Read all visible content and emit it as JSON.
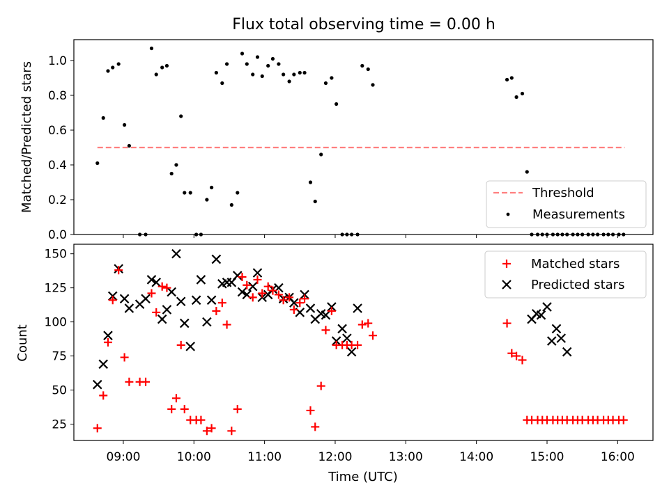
{
  "figure_title": "Flux total observing time = 0.00 h",
  "colors": {
    "threshold": "#ff7f7f",
    "measurement": "#000000",
    "matched": "#ff0000",
    "predicted": "#000000"
  },
  "chart_data": [
    {
      "type": "scatter",
      "title": "",
      "xlabel": "",
      "ylabel": "Matched/Predicted stars",
      "xlim": [
        "08:18",
        "16:30"
      ],
      "ylim": [
        0,
        1.12
      ],
      "yticks": [
        0.0,
        0.2,
        0.4,
        0.6,
        0.8,
        1.0
      ],
      "ytick_labels": [
        "0.0",
        "0.2",
        "0.4",
        "0.6",
        "0.8",
        "1.0"
      ],
      "xticks": [
        "09:00",
        "10:00",
        "11:00",
        "12:00",
        "13:00",
        "14:00",
        "15:00",
        "16:00"
      ],
      "legend": {
        "position": "lower right",
        "entries": [
          "Threshold",
          "Measurements"
        ]
      },
      "grid": false,
      "threshold": {
        "name": "Threshold",
        "y": 0.5,
        "x_start": "08:38",
        "x_end": "16:06",
        "style": "dashed"
      },
      "series": [
        {
          "name": "Measurements",
          "x": [
            "08:38",
            "08:43",
            "08:47",
            "08:51",
            "08:56",
            "09:01",
            "09:05",
            "09:14",
            "09:19",
            "09:24",
            "09:28",
            "09:33",
            "09:37",
            "09:41",
            "09:45",
            "09:49",
            "09:52",
            "09:57",
            "10:02",
            "10:06",
            "10:11",
            "10:15",
            "10:19",
            "10:24",
            "10:28",
            "10:32",
            "10:37",
            "10:41",
            "10:45",
            "10:50",
            "10:54",
            "10:58",
            "11:03",
            "11:07",
            "11:12",
            "11:16",
            "11:21",
            "11:25",
            "11:30",
            "11:34",
            "11:39",
            "11:43",
            "11:48",
            "11:52",
            "11:57",
            "12:01",
            "12:06",
            "12:10",
            "12:14",
            "12:19",
            "12:23",
            "12:28",
            "12:32",
            "14:26",
            "14:30",
            "14:34",
            "14:39",
            "14:43",
            "14:47",
            "14:52",
            "14:56",
            "15:00",
            "15:05",
            "15:09",
            "15:13",
            "15:17",
            "15:22",
            "15:26",
            "15:30",
            "15:35",
            "15:39",
            "15:43",
            "15:48",
            "15:52",
            "15:56",
            "16:01",
            "16:05"
          ],
          "y": [
            0.41,
            0.67,
            0.94,
            0.96,
            0.98,
            0.63,
            0.51,
            0,
            0,
            1.07,
            0.92,
            0.96,
            0.97,
            0.35,
            0.4,
            0.68,
            0.24,
            0.24,
            0,
            0,
            0.2,
            0.27,
            0.93,
            0.87,
            0.98,
            0.17,
            0.24,
            1.04,
            0.98,
            0.92,
            1.02,
            0.91,
            0.97,
            1.01,
            0.98,
            0.92,
            0.88,
            0.92,
            0.93,
            0.93,
            0.3,
            0.19,
            0.46,
            0.87,
            0.9,
            0.75,
            0,
            0,
            0,
            0,
            0.97,
            0.95,
            0.86,
            0.89,
            0.9,
            0.79,
            0.81,
            0.36,
            0,
            0,
            0,
            0,
            0,
            0,
            0,
            0,
            0,
            0,
            0,
            0,
            0,
            0,
            0,
            0,
            0,
            0,
            0
          ]
        }
      ]
    },
    {
      "type": "scatter",
      "title": "",
      "xlabel": "Time (UTC)",
      "ylabel": "Count",
      "xlim": [
        "08:18",
        "16:30"
      ],
      "ylim": [
        13,
        157
      ],
      "yticks": [
        25,
        50,
        75,
        100,
        125,
        150
      ],
      "ytick_labels": [
        "25",
        "50",
        "75",
        "100",
        "125",
        "150"
      ],
      "xticks": [
        "09:00",
        "10:00",
        "11:00",
        "12:00",
        "13:00",
        "14:00",
        "15:00",
        "16:00"
      ],
      "xtick_labels": [
        "09:00",
        "10:00",
        "11:00",
        "12:00",
        "13:00",
        "14:00",
        "15:00",
        "16:00"
      ],
      "legend": {
        "position": "upper right",
        "entries": [
          "Matched stars",
          "Predicted stars"
        ]
      },
      "grid": false,
      "series": [
        {
          "name": "Matched stars",
          "marker": "+",
          "x": [
            "08:38",
            "08:43",
            "08:47",
            "08:51",
            "08:56",
            "09:01",
            "09:05",
            "09:14",
            "09:19",
            "09:24",
            "09:28",
            "09:33",
            "09:37",
            "09:41",
            "09:45",
            "09:49",
            "09:52",
            "09:57",
            "10:02",
            "10:06",
            "10:11",
            "10:15",
            "10:19",
            "10:24",
            "10:28",
            "10:32",
            "10:37",
            "10:41",
            "10:45",
            "10:50",
            "10:54",
            "10:58",
            "11:03",
            "11:07",
            "11:12",
            "11:16",
            "11:21",
            "11:25",
            "11:30",
            "11:34",
            "11:39",
            "11:43",
            "11:48",
            "11:52",
            "11:57",
            "12:01",
            "12:06",
            "12:10",
            "12:14",
            "12:19",
            "12:23",
            "12:28",
            "12:32",
            "14:26",
            "14:30",
            "14:34",
            "14:39",
            "14:43",
            "14:47",
            "14:52",
            "14:56",
            "15:00",
            "15:05",
            "15:09",
            "15:13",
            "15:17",
            "15:22",
            "15:26",
            "15:30",
            "15:35",
            "15:39",
            "15:43",
            "15:48",
            "15:52",
            "15:56",
            "16:01",
            "16:05"
          ],
          "y": [
            22,
            46,
            85,
            116,
            138,
            74,
            56,
            56,
            56,
            121,
            107,
            126,
            125,
            36,
            44,
            83,
            36,
            28,
            28,
            28,
            20,
            22,
            108,
            114,
            98,
            20,
            36,
            133,
            127,
            118,
            131,
            121,
            126,
            123,
            120,
            116,
            118,
            109,
            114,
            117,
            35,
            23,
            53,
            94,
            108,
            83,
            83,
            83,
            83,
            83,
            98,
            99,
            90,
            99,
            77,
            75,
            72,
            28,
            28,
            28,
            28,
            28,
            28,
            28,
            28,
            28,
            28,
            28,
            28,
            28,
            28,
            28,
            28,
            28,
            28,
            28,
            28
          ]
        },
        {
          "name": "Predicted stars",
          "marker": "x",
          "x": [
            "08:38",
            "08:43",
            "08:47",
            "08:51",
            "08:56",
            "09:01",
            "09:05",
            "09:14",
            "09:19",
            "09:24",
            "09:28",
            "09:33",
            "09:37",
            "09:41",
            "09:45",
            "09:49",
            "09:52",
            "09:57",
            "10:02",
            "10:06",
            "10:11",
            "10:15",
            "10:19",
            "10:24",
            "10:28",
            "10:32",
            "10:37",
            "10:41",
            "10:45",
            "10:50",
            "10:54",
            "10:58",
            "11:03",
            "11:07",
            "11:12",
            "11:16",
            "11:21",
            "11:25",
            "11:30",
            "11:34",
            "11:39",
            "11:43",
            "11:48",
            "11:52",
            "11:57",
            "12:01",
            "12:06",
            "12:10",
            "12:14",
            "12:19",
            "14:47",
            "14:51",
            "14:55",
            "15:00",
            "15:04",
            "15:08",
            "15:12",
            "15:17"
          ],
          "y": [
            54,
            69,
            90,
            119,
            139,
            117,
            110,
            113,
            117,
            131,
            129,
            102,
            109,
            122,
            150,
            115,
            99,
            82,
            116,
            131,
            100,
            116,
            146,
            128,
            129,
            129,
            134,
            122,
            120,
            126,
            136,
            118,
            120,
            124,
            125,
            117,
            118,
            114,
            107,
            120,
            110,
            102,
            106,
            105,
            111,
            86,
            95,
            88,
            78,
            110,
            102,
            106,
            105,
            111,
            86,
            95,
            88,
            78
          ]
        }
      ]
    }
  ]
}
